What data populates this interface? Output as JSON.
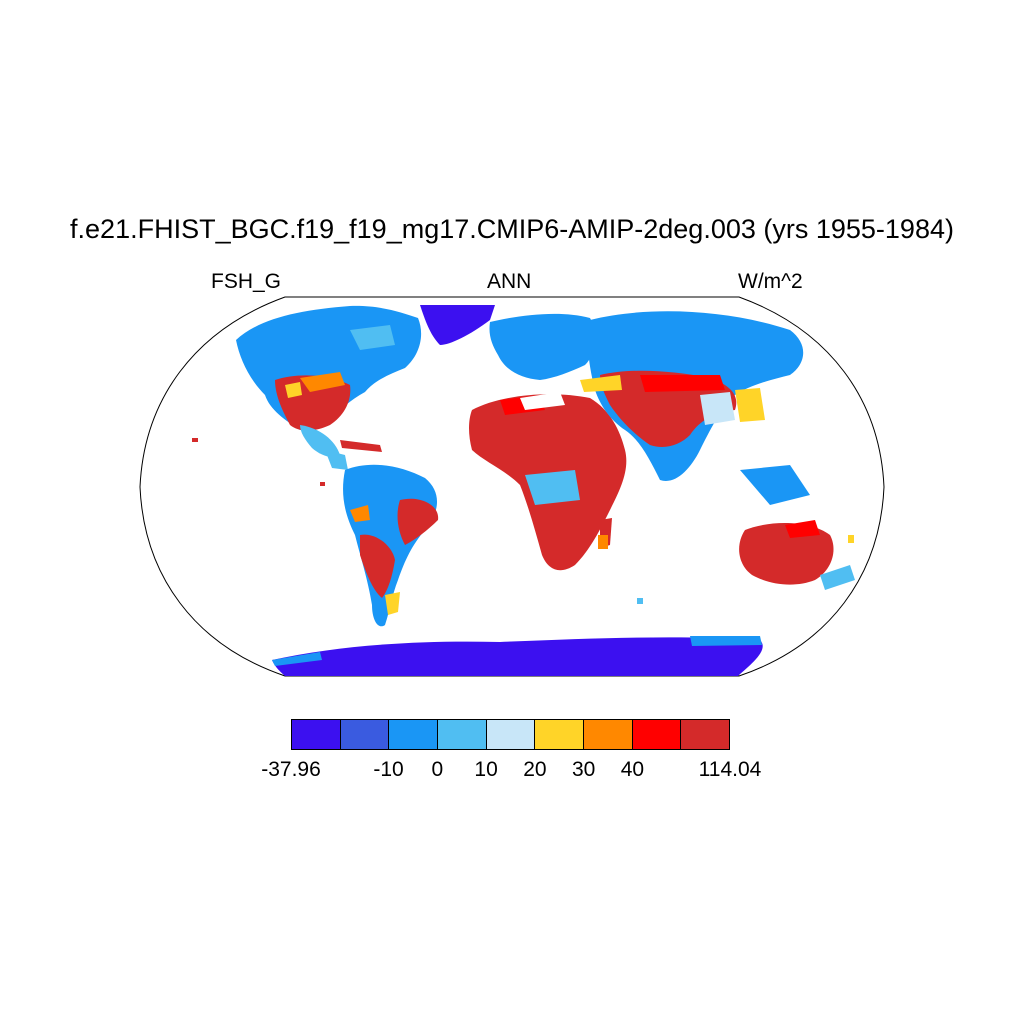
{
  "title": "f.e21.FHIST_BGC.f19_f19_mg17.CMIP6-AMIP-2deg.003 (yrs 1955-1984)",
  "left_label": "FSH_G",
  "center_label": "ANN",
  "right_label": "W/m^2",
  "colorbar": {
    "colors": [
      "#3c10f0",
      "#3a5be0",
      "#1a96f5",
      "#50bef2",
      "#c8e6f8",
      "#ffd428",
      "#ff8800",
      "#ff0000",
      "#d42a2a"
    ],
    "labels": [
      "-37.96",
      "-10",
      "0",
      "10",
      "20",
      "30",
      "40",
      "114.04"
    ]
  },
  "map": {
    "projection": "Robinson",
    "ocean_color": "#ffffff"
  }
}
